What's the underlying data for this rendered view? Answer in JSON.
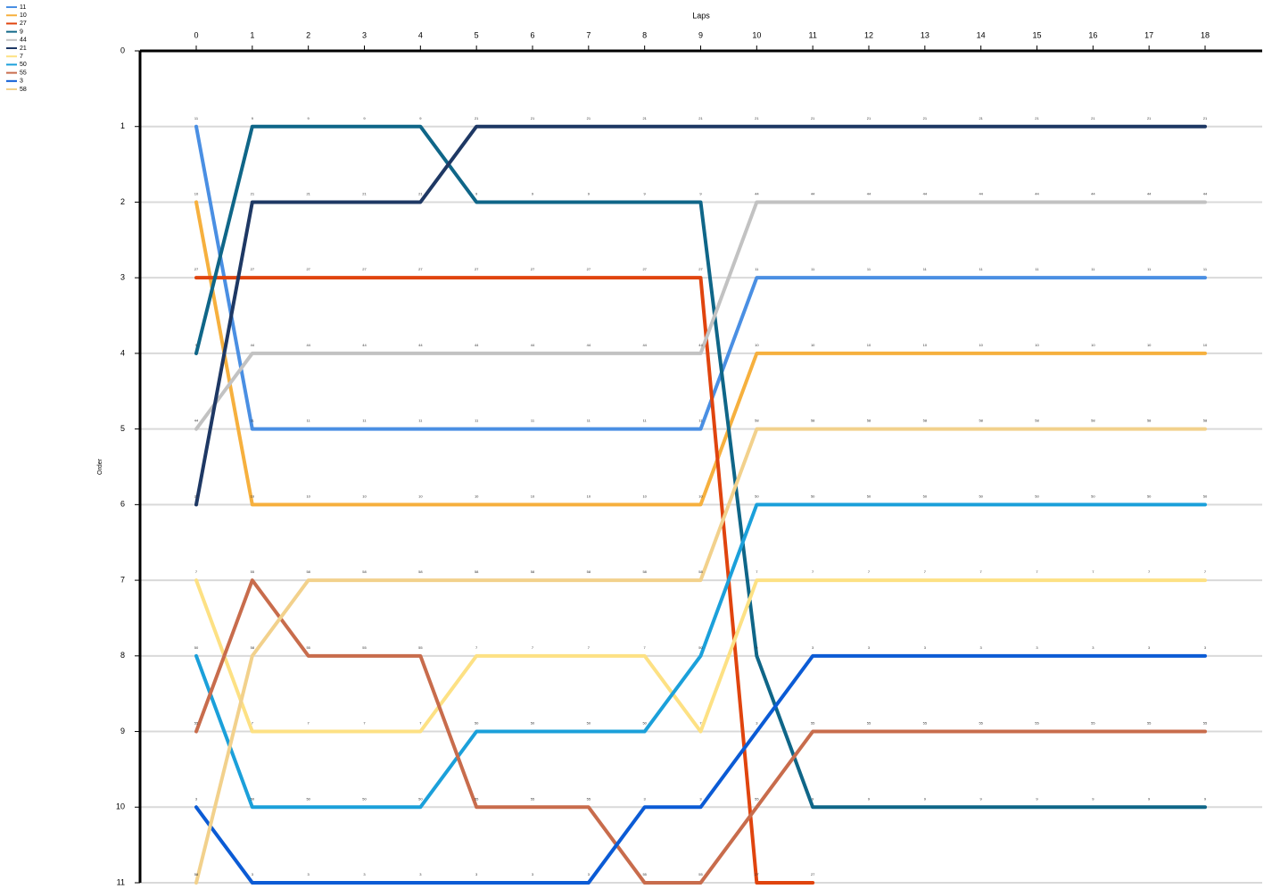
{
  "chart_data": {
    "type": "line",
    "x_label": "Laps",
    "y_label": "Order",
    "x": [
      0,
      1,
      2,
      3,
      4,
      5,
      6,
      7,
      8,
      9,
      10,
      11,
      12,
      13,
      14,
      15,
      16,
      17,
      18
    ],
    "xlim": [
      0,
      18
    ],
    "xticks": [
      0,
      1,
      2,
      3,
      4,
      5,
      6,
      7,
      8,
      9,
      10,
      11,
      12,
      13,
      14,
      15,
      16,
      17,
      18
    ],
    "ylim": [
      0,
      11
    ],
    "yticks": [
      0,
      1,
      2,
      3,
      4,
      5,
      6,
      7,
      8,
      9,
      10,
      11
    ],
    "y_inverted": true,
    "grid": true,
    "legend": "top-left",
    "series": [
      {
        "name": "11",
        "color": "#4a8fe3",
        "values": [
          1,
          5,
          5,
          5,
          5,
          5,
          5,
          5,
          5,
          5,
          3,
          3,
          3,
          3,
          3,
          3,
          3,
          3,
          3
        ]
      },
      {
        "name": "10",
        "color": "#f6b03e",
        "values": [
          2,
          6,
          6,
          6,
          6,
          6,
          6,
          6,
          6,
          6,
          4,
          4,
          4,
          4,
          4,
          4,
          4,
          4,
          4
        ]
      },
      {
        "name": "27",
        "color": "#e0440e",
        "values": [
          3,
          3,
          3,
          3,
          3,
          3,
          3,
          3,
          3,
          3,
          11,
          11,
          null,
          null,
          null,
          null,
          null,
          null,
          null
        ]
      },
      {
        "name": "9",
        "color": "#0f6688",
        "values": [
          4,
          1,
          1,
          1,
          1,
          2,
          2,
          2,
          2,
          2,
          8,
          10,
          10,
          10,
          10,
          10,
          10,
          10,
          10
        ]
      },
      {
        "name": "44",
        "color": "#c2c2c2",
        "values": [
          5,
          4,
          4,
          4,
          4,
          4,
          4,
          4,
          4,
          4,
          2,
          2,
          2,
          2,
          2,
          2,
          2,
          2,
          2
        ]
      },
      {
        "name": "21",
        "color": "#1e3864",
        "values": [
          6,
          2,
          2,
          2,
          2,
          1,
          1,
          1,
          1,
          1,
          1,
          1,
          1,
          1,
          1,
          1,
          1,
          1,
          1
        ]
      },
      {
        "name": "7",
        "color": "#fde184",
        "values": [
          7,
          9,
          9,
          9,
          9,
          8,
          8,
          8,
          8,
          9,
          7,
          7,
          7,
          7,
          7,
          7,
          7,
          7,
          7
        ]
      },
      {
        "name": "50",
        "color": "#1ba0da",
        "values": [
          8,
          10,
          10,
          10,
          10,
          9,
          9,
          9,
          9,
          8,
          6,
          6,
          6,
          6,
          6,
          6,
          6,
          6,
          6
        ]
      },
      {
        "name": "55",
        "color": "#c86c4c",
        "values": [
          9,
          7,
          8,
          8,
          8,
          10,
          10,
          10,
          11,
          11,
          10,
          9,
          9,
          9,
          9,
          9,
          9,
          9,
          9
        ]
      },
      {
        "name": "3",
        "color": "#0b5bd5",
        "values": [
          10,
          11,
          11,
          11,
          11,
          11,
          11,
          11,
          10,
          10,
          9,
          8,
          8,
          8,
          8,
          8,
          8,
          8,
          8
        ]
      },
      {
        "name": "58",
        "color": "#f2d18c",
        "values": [
          11,
          8,
          7,
          7,
          7,
          7,
          7,
          7,
          7,
          7,
          5,
          5,
          5,
          5,
          5,
          5,
          5,
          5,
          5
        ]
      }
    ]
  }
}
